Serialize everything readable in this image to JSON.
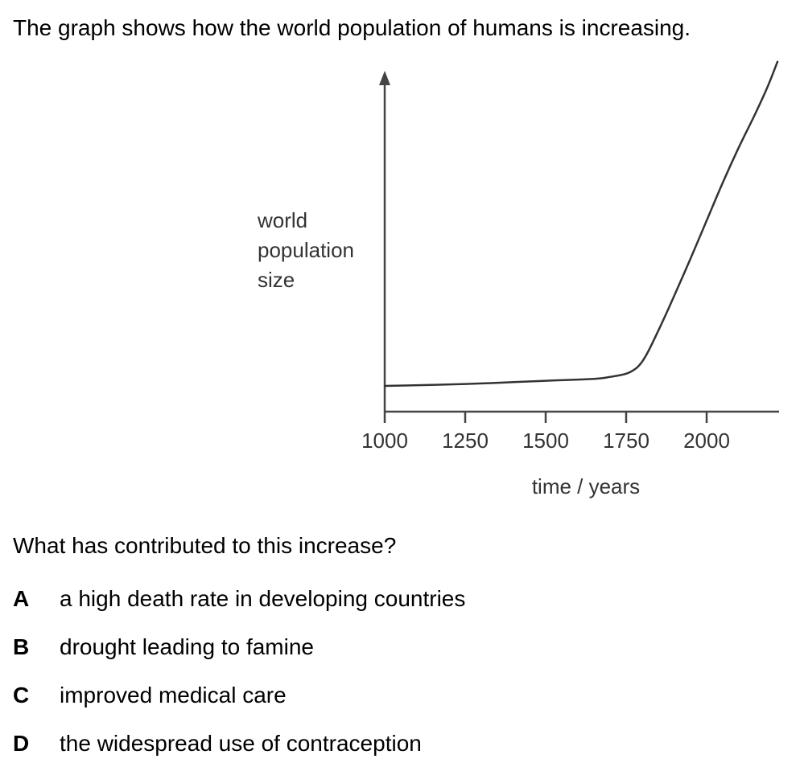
{
  "intro_text": "The graph shows how the world population of humans is increasing.",
  "chart_data": {
    "type": "line",
    "title": "",
    "xlabel": "time / years",
    "ylabel": [
      "world",
      "population",
      "size"
    ],
    "x_ticks": [
      1000,
      1250,
      1500,
      1750,
      2000
    ],
    "xlim": [
      1000,
      2230
    ],
    "ylim": [
      0,
      100
    ],
    "y_ticks_shown": false,
    "grid": false,
    "series": [
      {
        "x": [
          1000,
          1250,
          1500,
          1650,
          1700,
          1750,
          1780,
          1800,
          1820,
          1850,
          1875,
          1900,
          1950,
          2000,
          2050,
          2100,
          2150,
          2190,
          2220
        ],
        "values": [
          8,
          8.6,
          9.6,
          10.2,
          10.8,
          11.8,
          13.4,
          15.6,
          19,
          25.2,
          30.6,
          36.2,
          47.6,
          59.4,
          71.2,
          82.2,
          92.4,
          101.2,
          108.8
        ]
      }
    ]
  },
  "question": "What has contributed to this increase?",
  "options": [
    {
      "letter": "A",
      "text": "a high death rate in developing countries"
    },
    {
      "letter": "B",
      "text": "drought leading to famine"
    },
    {
      "letter": "C",
      "text": "improved medical care"
    },
    {
      "letter": "D",
      "text": "the widespread use of contraception"
    }
  ]
}
